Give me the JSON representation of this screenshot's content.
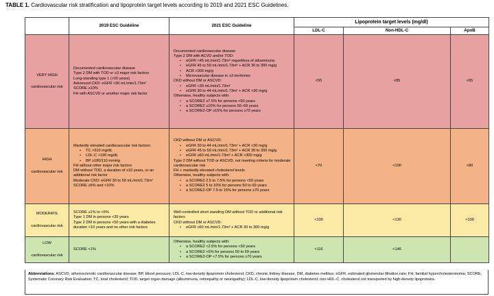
{
  "title": {
    "label": "TABLE 1.",
    "text": " Cardiovascular risk stratification and lipoprotein target levels according to 2019 and 2021 ESC Guidelines."
  },
  "headers": {
    "guideline_2019": "2019 ESC Guideline",
    "guideline_2021": "2021 ESC Guideline",
    "lipoprotein_group": "Lipoprotein target levels (mg/dl)",
    "ldl": "LDL-C",
    "non_hdl": "Non-HDL-C",
    "apob": "ApoB"
  },
  "rows": {
    "very_high": {
      "category": "VERY HIGH",
      "sub": "cardiovascular risk",
      "color": "#e7a1a1",
      "g2019": [
        "Documented cardiovascular disease",
        "Type 2 DM with TOD or ≥3 major risk factors",
        "Long-standing type 1 (>20 years)",
        "Advanced CKD: eGFR <30 mL/min/1.73m²",
        "SCORE ≥10%",
        "FH with ASCVD or another major risk factor"
      ],
      "g2021": {
        "l1": "Documented cardiovascular disease",
        "l2": "Type 2 DM with ACVD and/or TOD:",
        "b1": [
          "eGFR <45 mL/min/1.73m² regardless of albuminuria",
          "eGFR 45 to 59 mL/min/1.73m² + ACR 30 to 300 mg/g",
          "ACR >300 mg/g",
          "Microvascular disease in ≥3 territories"
        ],
        "l3": "CKD without DM or ASCVD:",
        "b2": [
          "eGFR <30 mL/min/1.73m²",
          "eGFR 30 to 44 mL/min/1.73m² + ACR >30 mg/g"
        ],
        "l4": "Otherwise, healthy subjects with:",
        "b3": [
          "a SCORE2 ≥7.5% for persons <50 years",
          "a SCORE2 ≥10% for persons 50–69 years",
          "a SCORE2-OP ≥15% for persons ≥70 years"
        ]
      },
      "ldl": "<55",
      "non_hdl": "<85",
      "apob": "<65"
    },
    "high": {
      "category": "HIGH",
      "sub": "cardiovascular risk",
      "color": "#f3b386",
      "g2019": {
        "l1": "Markedly elevated cardiovascular risk factors:",
        "b1": [
          "TC >310 mg/dL",
          "LDL-C >190 mg/dL",
          "BP ≥180/110 mmHg"
        ],
        "rest": [
          "FH without other major risk factors",
          "DM without TOD, a duration of ≥10 years, or an additional risk factor",
          "Moderate CKD: eGFR 30 to 59 mL/min/1.73m²",
          "SCORE ≥5% and <10%"
        ]
      },
      "g2021": {
        "l1": "CKD without DM or ASCVD:",
        "b1": [
          "eGFR 30 to 44 mL/min/1.73m² + ACR <30 mg/g",
          "eGFR 45 to 59 mL/min/1.73m² + ACR 30 to 300 mg/g",
          "eGFR ≥60 mL/min/1.73m² + ACR >300 mg/g"
        ],
        "l2": "Type 2 DM without TOD or ASCVD, not meeting criteria for moderate cardiovascular risk",
        "l3": "FH + markedly elevated cholesterol levels",
        "l4": "Otherwise, healthy subjects with:",
        "b2": [
          "a SCORE2 2.5 to 7.5% for persons <50 years",
          "a SCORE2 5 to 10% for persons 50 to 69 years",
          "a SCORE2-OP 7.5 to 15% for persons ≥70 years"
        ]
      },
      "ldl": "<70",
      "non_hdl": "<100",
      "apob": "<80"
    },
    "moderate": {
      "category": "MODERATE",
      "sub": "cardiovascular risk",
      "color": "#fbe9a6",
      "g2019": [
        "SCORE ≥1% to <5%",
        "Type 1 DM in persons <35 years",
        "Type 2 DM in persons <50 years with a diabetes duration <10 years and no other risk factors"
      ],
      "g2021": {
        "l1": "Well-controlled short standing DM without TOD or additional risk factors",
        "l2": "CKD without DM or ASCVD:",
        "b1": [
          "eGFR ≥60 mL/min/1.73m² + ACR 30 to 300 mg/g"
        ]
      },
      "ldl": "<100",
      "non_hdl": "<130",
      "apob": "<100"
    },
    "low": {
      "category": "LOW",
      "sub": "cardiovascular risk",
      "color": "#cde5b1",
      "g2019": [
        "SCORE <1%"
      ],
      "g2021": {
        "l1": "Otherwise, healthy subjects with:",
        "b1": [
          "a SCORE2 <2.5% for persons <50 years",
          "a SCORE2 <5% for persons 50 to 69 years",
          "a SCORE2-OP <7.5% for persons ≥70 years"
        ]
      },
      "ldl": "<116",
      "non_hdl": "<146",
      "apob": ""
    }
  },
  "abbreviations": {
    "label": "Abbreviations:",
    "text": " ASCVD, atherosclerotic cardiovascular disease; BP, blood pressure; LDL-C, low-density lipoprotein cholesterol; CKD, chronic kidney disease, DM, diabetes mellitus; eGFR, estimated glomerular filtration rate; FH, familial hypercholesterolemia; SCORE, Systematic Coronary Risk Evaluation; TC, total cholesterol; TOD, target organ damage (albuminuria, retinopathy or neuropathy); LDL-C, low-density lipoprotein cholesterol; non-HDL-C, cholesterol not transported by high-density lipoproteins."
  }
}
